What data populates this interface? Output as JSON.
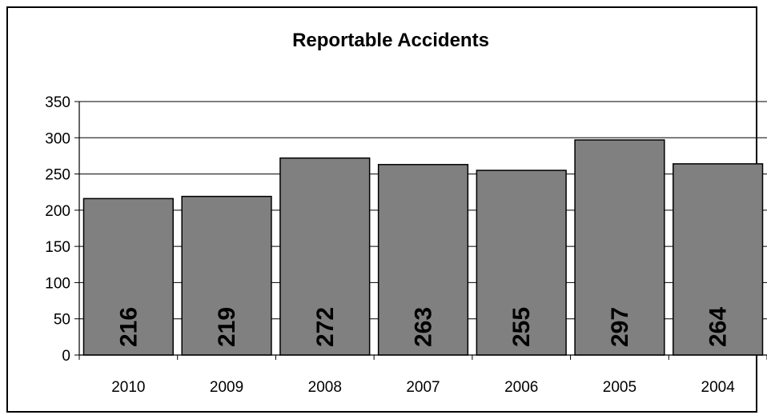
{
  "chart_data": {
    "type": "bar",
    "title": "Reportable Accidents",
    "xlabel": "",
    "ylabel": "",
    "categories": [
      "2010",
      "2009",
      "2008",
      "2007",
      "2006",
      "2005",
      "2004"
    ],
    "values": [
      216,
      219,
      272,
      263,
      255,
      297,
      264
    ],
    "ylim": [
      0,
      350
    ],
    "yticks": [
      "0",
      "50",
      "100",
      "150",
      "200",
      "250",
      "300",
      "350"
    ],
    "grid": true,
    "legend": "none",
    "bar_color": "#808080",
    "data_labels_rotated": true
  }
}
